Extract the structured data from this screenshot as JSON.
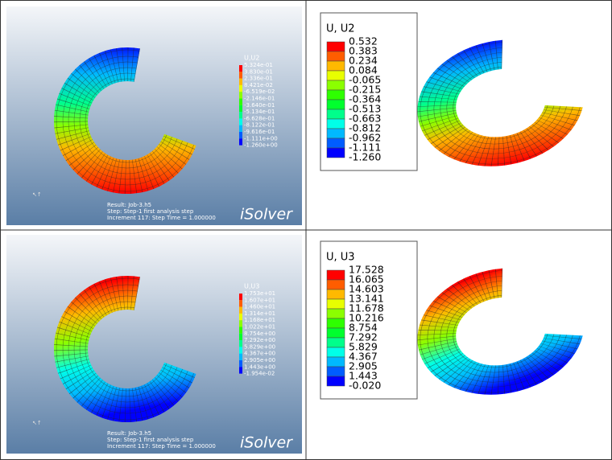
{
  "panels": [
    {
      "legend": {
        "title": "U,U2",
        "labels": [
          "5.324e-01",
          "3.830e-01",
          "2.336e-01",
          "8.421e-02",
          "-6.519e-02",
          "-2.146e-01",
          "-3.640e-01",
          "-5.134e-01",
          "-6.628e-01",
          "-8.122e-01",
          "-9.616e-01",
          "-1.111e+00",
          "-1.260e+00"
        ]
      },
      "info": [
        "Result: Job-3.h5",
        "Step: Step-1 first analysis step",
        "Increment     117: Step Time =    1.000000"
      ],
      "brand": "iSolver"
    },
    {
      "legend": {
        "title": "U, U2",
        "labels": [
          "0.532",
          "0.383",
          "0.234",
          "0.084",
          "-0.065",
          "-0.215",
          "-0.364",
          "-0.513",
          "-0.663",
          "-0.812",
          "-0.962",
          "-1.111",
          "-1.260"
        ]
      }
    },
    {
      "legend": {
        "title": "U,U3",
        "labels": [
          "1.753e+01",
          "1.607e+01",
          "1.460e+01",
          "1.314e+01",
          "1.168e+01",
          "1.022e+01",
          "8.754e+00",
          "7.292e+00",
          "5.829e+00",
          "4.367e+00",
          "2.905e+00",
          "1.443e+00",
          "-1.954e-02"
        ]
      },
      "info": [
        "Result: Job-3.h5",
        "Step: Step-1 first analysis step",
        "Increment     117: Step Time =    1.000000"
      ],
      "brand": "iSolver"
    },
    {
      "legend": {
        "title": "U, U3",
        "labels": [
          "17.528",
          "16.065",
          "14.603",
          "13.141",
          "11.678",
          "10.216",
          "8.754",
          "7.292",
          "5.829",
          "4.367",
          "2.905",
          "1.443",
          "-0.020"
        ]
      }
    }
  ]
}
